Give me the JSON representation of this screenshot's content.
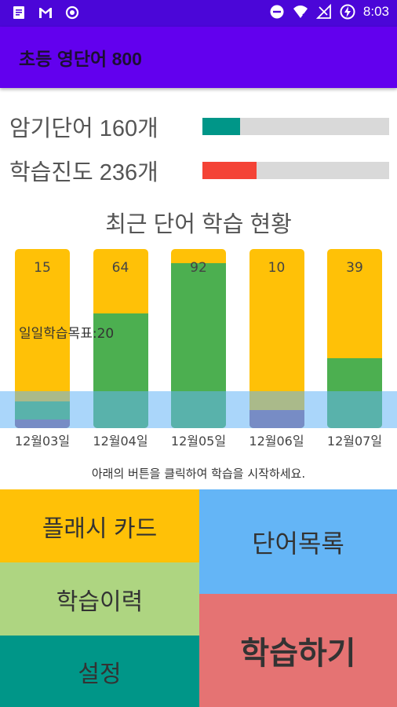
{
  "status_bar": {
    "time": "8:03",
    "left_icons": [
      "note-icon",
      "gmail-icon",
      "record-icon"
    ],
    "right_icons": [
      "dnd-icon",
      "wifi-icon",
      "no-signal-icon",
      "battery-charging-icon"
    ]
  },
  "app_bar": {
    "title": "초등 영단어 800"
  },
  "stats": {
    "memorized": {
      "label": "암기단어 160개",
      "progress": 0.2,
      "color": "#009688"
    },
    "progress": {
      "label": "학습진도 236개",
      "progress": 0.29,
      "color": "#f44336"
    }
  },
  "chart": {
    "title": "최근 단어 학습 현황",
    "goal_label": "일일학습목표:20",
    "colors": {
      "yellow": "#ffc107",
      "green": "#4caf50",
      "purple": "#8e5b8a",
      "goal": "#64b5f6"
    }
  },
  "chart_data": {
    "type": "bar",
    "title": "최근 단어 학습 현황",
    "categories": [
      "12월03일",
      "12월04일",
      "12월05일",
      "12월06일",
      "12월07일"
    ],
    "labels": [
      "15",
      "64",
      "92",
      "10",
      "39"
    ],
    "series": [
      {
        "values": [
          15,
          64,
          92,
          10,
          39
        ]
      }
    ],
    "goal": 20,
    "ylim": [
      0,
      100
    ]
  },
  "hint": "아래의 버튼을 클릭하여 학습을 시작하세요.",
  "buttons": {
    "flashcard": {
      "label": "플래시 카드",
      "color": "#ffc107"
    },
    "word_list": {
      "label": "단어목록",
      "color": "#64b5f6"
    },
    "history": {
      "label": "학습이력",
      "color": "#aed581"
    },
    "study": {
      "label": "학습하기",
      "color": "#e57373"
    },
    "settings": {
      "label": "설정",
      "color": "#009688"
    }
  }
}
